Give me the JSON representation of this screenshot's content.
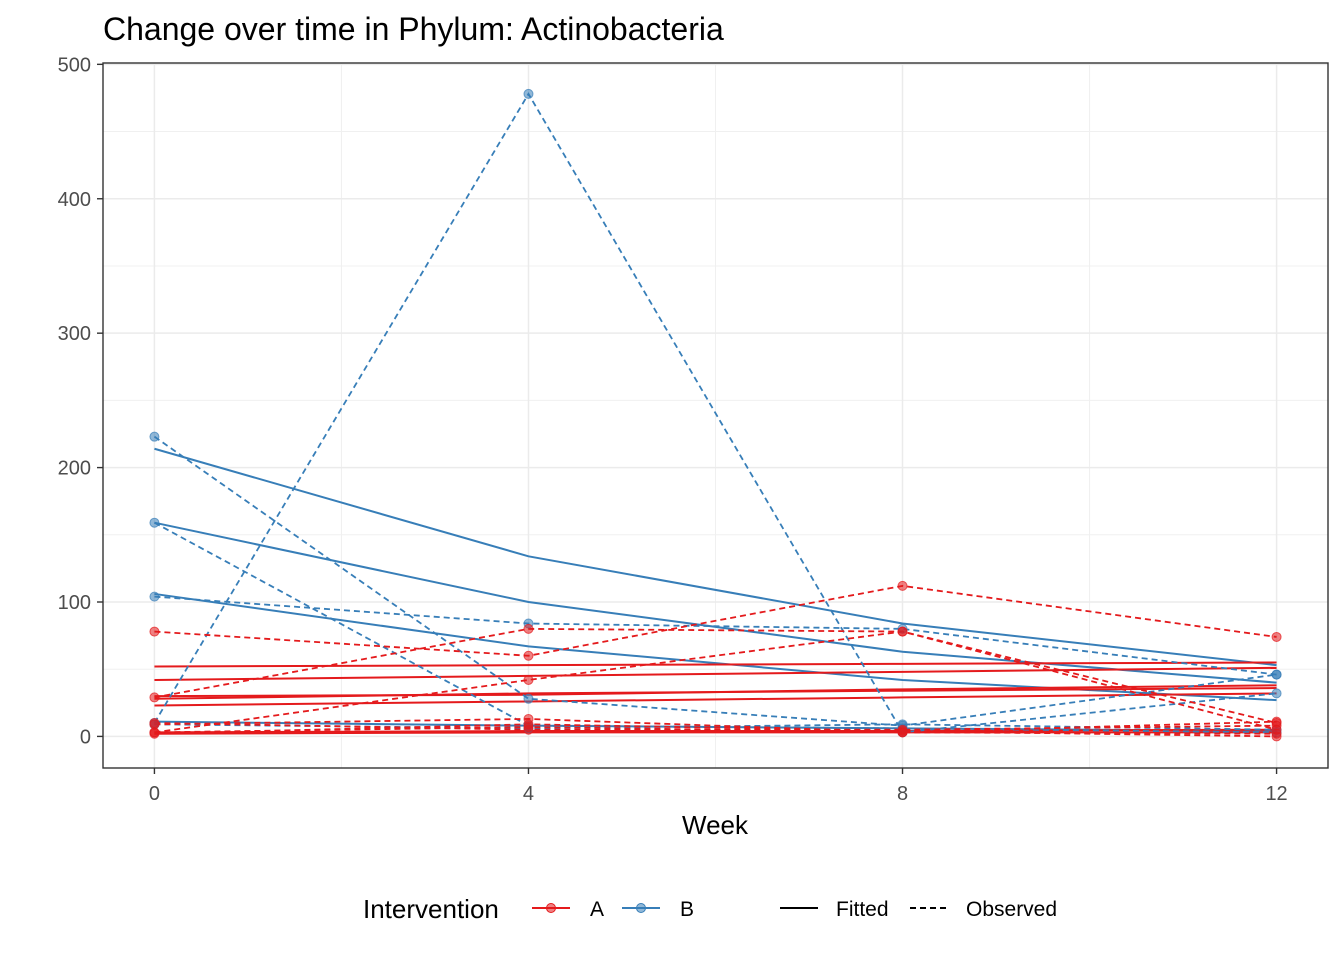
{
  "chart_data": {
    "type": "line",
    "title": "Change over time in Phylum: Actinobacteria",
    "xlabel": "Week",
    "ylabel": "",
    "xlim": [
      -0.55,
      12.55
    ],
    "ylim": [
      -23.5,
      501
    ],
    "x_ticks": [
      0,
      4,
      8,
      12
    ],
    "x_tick_labels": [
      "0",
      "4",
      "8",
      "12"
    ],
    "y_ticks": [
      0,
      100,
      200,
      300,
      400,
      500
    ],
    "y_tick_labels": [
      "0",
      "100",
      "200",
      "300",
      "400",
      "500"
    ],
    "x_minor_gridlines": [
      2,
      6,
      10
    ],
    "y_minor_gridlines": [
      50,
      150,
      250,
      350,
      450
    ],
    "grid": true,
    "legend": {
      "placement": "bottom",
      "color_title": "Intervention",
      "color_entries": [
        {
          "label": "A",
          "color": "#E41A1C"
        },
        {
          "label": "B",
          "color": "#377EB8"
        }
      ],
      "linetype_entries": [
        {
          "label": "Fitted",
          "dash": "solid"
        },
        {
          "label": "Observed",
          "dash": "dashed"
        }
      ]
    },
    "x": [
      0,
      4,
      8,
      12
    ],
    "observed": [
      {
        "group": "B",
        "values": [
          223,
          28,
          8,
          46
        ]
      },
      {
        "group": "B",
        "values": [
          104,
          84,
          80,
          46
        ]
      },
      {
        "group": "B",
        "values": [
          10,
          478,
          3,
          32
        ]
      },
      {
        "group": "B",
        "values": [
          159,
          8,
          6,
          3
        ]
      },
      {
        "group": "B",
        "values": [
          9,
          6,
          9,
          5
        ]
      },
      {
        "group": "A",
        "values": [
          78,
          60,
          112,
          74
        ]
      },
      {
        "group": "A",
        "values": [
          29,
          80,
          78,
          10
        ]
      },
      {
        "group": "A",
        "values": [
          3,
          42,
          78,
          5
        ]
      },
      {
        "group": "A",
        "values": [
          9,
          13,
          3,
          11
        ]
      },
      {
        "group": "A",
        "values": [
          2,
          9,
          4,
          0
        ]
      },
      {
        "group": "A",
        "values": [
          10,
          5,
          5,
          8
        ]
      },
      {
        "group": "A",
        "values": [
          3,
          7,
          3,
          2
        ]
      }
    ],
    "fitted": [
      {
        "group": "B",
        "values": [
          214,
          134,
          84,
          53
        ]
      },
      {
        "group": "B",
        "values": [
          159,
          100,
          63,
          40
        ]
      },
      {
        "group": "B",
        "values": [
          106,
          67,
          42,
          27
        ]
      },
      {
        "group": "B",
        "values": [
          11,
          8,
          6,
          4
        ]
      },
      {
        "group": "A",
        "values": [
          52,
          53,
          54,
          55
        ]
      },
      {
        "group": "A",
        "values": [
          42,
          45,
          48,
          51
        ]
      },
      {
        "group": "A",
        "values": [
          30,
          31,
          35,
          38
        ]
      },
      {
        "group": "A",
        "values": [
          28,
          32,
          34,
          36
        ]
      },
      {
        "group": "A",
        "values": [
          23,
          26,
          29,
          32
        ]
      },
      {
        "group": "A",
        "values": [
          3,
          4,
          4,
          5
        ]
      },
      {
        "group": "A",
        "values": [
          2,
          3,
          3,
          3
        ]
      }
    ],
    "colors": {
      "A": "#E41A1C",
      "B": "#377EB8"
    }
  }
}
